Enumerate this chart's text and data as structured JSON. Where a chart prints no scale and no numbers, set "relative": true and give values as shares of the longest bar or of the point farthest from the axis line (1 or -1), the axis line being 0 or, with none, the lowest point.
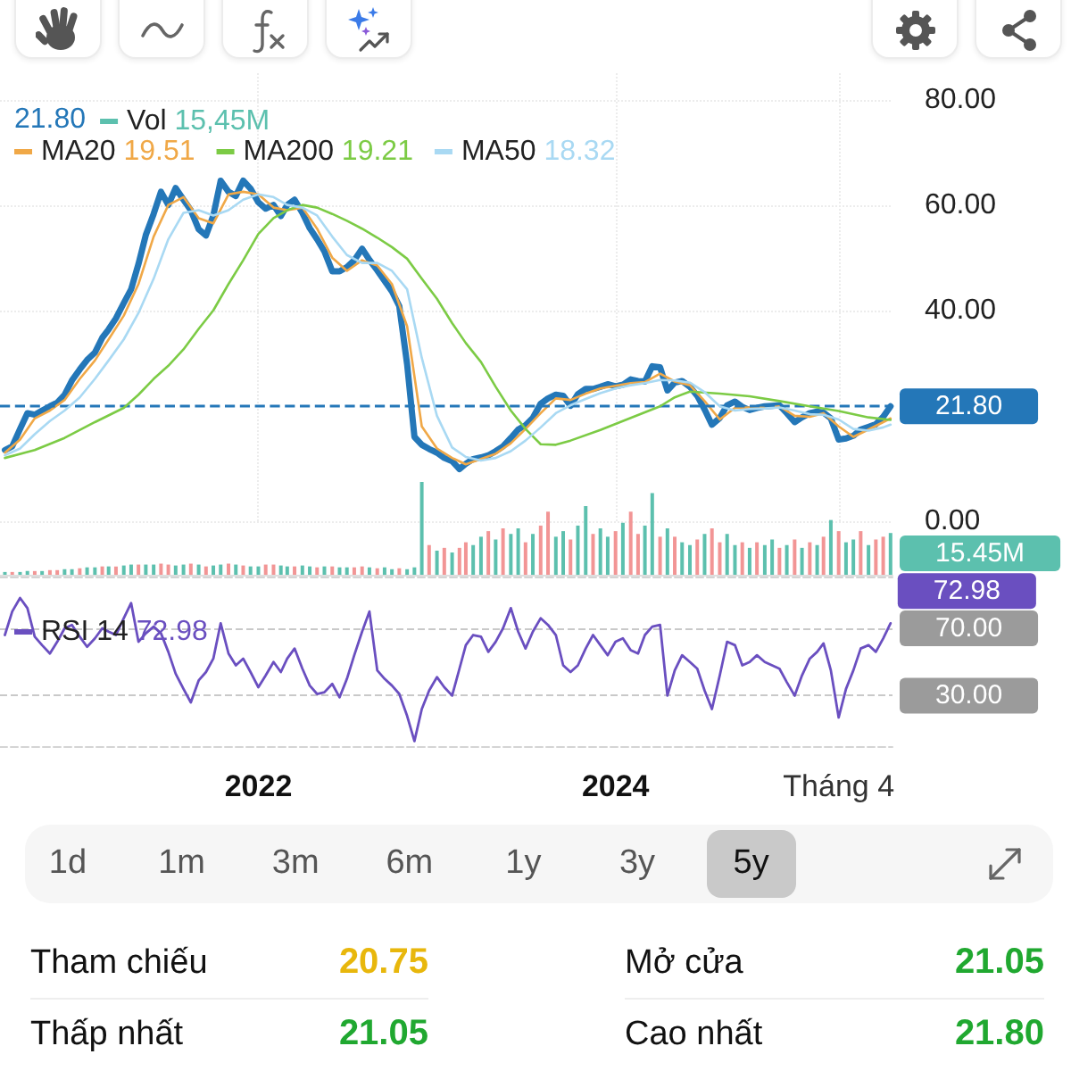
{
  "chart_data": [
    {
      "type": "line",
      "legend": "top left",
      "annotations": [
        "21.80",
        "19.51",
        "19.21",
        "18.32"
      ],
      "xlim": [
        "2020-07-22",
        "2025-07-20"
      ],
      "xticks": [
        {
          "value": "2022-01-01",
          "label": null
        },
        {
          "value": "2024-01-01",
          "label": null
        },
        {
          "value": "2025-04-01",
          "label": null
        }
      ],
      "ylim": [
        0,
        85
      ],
      "yticks": [
        {
          "value": 0,
          "label": "0.00"
        },
        {
          "value": 40,
          "label": "40.00"
        },
        {
          "value": 60,
          "label": "60.00"
        },
        {
          "value": 80,
          "label": "80.00"
        }
      ],
      "tick_labels": "y",
      "grid": true,
      "ref_lines": [
        {
          "axis": "y",
          "value": 21.8,
          "label": "21.80",
          "color": "#2477b8",
          "line_style": "dashed"
        }
      ],
      "series": [
        {
          "color": "#2477b8",
          "x": [
            "2020-08-01",
            "2020-08-16",
            "2020-09-01",
            "2020-09-16",
            "2020-10-01",
            "2020-10-16",
            "2020-11-01",
            "2020-11-16",
            "2020-12-01",
            "2020-12-16",
            "2021-01-01",
            "2021-01-16",
            "2021-02-01",
            "2021-02-16",
            "2021-03-01",
            "2021-03-16",
            "2021-04-01",
            "2021-04-16",
            "2021-05-01",
            "2021-05-16",
            "2021-06-01",
            "2021-06-16",
            "2021-07-01",
            "2021-07-16",
            "2021-08-01",
            "2021-08-16",
            "2021-09-01",
            "2021-09-16",
            "2021-10-01",
            "2021-10-16",
            "2021-11-01",
            "2021-11-16",
            "2021-12-01",
            "2021-12-16",
            "2022-01-01",
            "2022-01-16",
            "2022-02-01",
            "2022-02-16",
            "2022-03-01",
            "2022-03-16",
            "2022-04-01",
            "2022-04-16",
            "2022-05-01",
            "2022-05-16",
            "2022-06-01",
            "2022-06-16",
            "2022-07-01",
            "2022-07-16",
            "2022-08-01",
            "2022-08-16",
            "2022-09-01",
            "2022-09-16",
            "2022-10-01",
            "2022-10-16",
            "2022-11-01",
            "2022-11-16",
            "2022-12-01",
            "2022-12-16",
            "2023-01-01",
            "2023-01-16",
            "2023-02-01",
            "2023-02-16",
            "2023-03-01",
            "2023-03-16",
            "2023-04-01",
            "2023-04-16",
            "2023-05-01",
            "2023-05-16",
            "2023-06-01",
            "2023-06-16",
            "2023-07-01",
            "2023-07-16",
            "2023-08-01",
            "2023-08-16",
            "2023-09-01",
            "2023-09-16",
            "2023-10-01",
            "2023-10-16",
            "2023-11-01",
            "2023-11-16",
            "2023-12-01",
            "2023-12-16",
            "2024-01-01",
            "2024-01-16",
            "2024-02-01",
            "2024-02-16",
            "2024-03-01",
            "2024-03-16",
            "2024-04-01",
            "2024-04-16",
            "2024-05-01",
            "2024-05-16",
            "2024-06-01",
            "2024-06-16",
            "2024-07-01",
            "2024-07-16",
            "2024-08-01",
            "2024-08-16",
            "2024-09-01",
            "2024-09-16",
            "2024-10-01",
            "2024-10-16",
            "2024-11-01",
            "2024-11-16",
            "2024-12-01",
            "2024-12-16",
            "2025-01-01",
            "2025-01-16",
            "2025-02-01",
            "2025-02-16",
            "2025-03-01",
            "2025-03-16",
            "2025-04-01",
            "2025-04-16",
            "2025-05-01",
            "2025-05-16",
            "2025-06-01",
            "2025-06-16",
            "2025-07-01",
            "2025-07-16"
          ],
          "values": [
            13.5,
            14.2,
            17.5,
            20.5,
            20.2,
            21,
            21.8,
            22.5,
            24,
            26.7,
            28.8,
            30.6,
            32,
            34.8,
            36.4,
            38.5,
            41.4,
            44,
            48.8,
            54.3,
            58.3,
            62.5,
            60,
            63.2,
            61,
            59,
            55.4,
            54.2,
            58,
            64.6,
            62.5,
            61.7,
            64.6,
            63.1,
            60.5,
            59.3,
            60,
            57.9,
            60,
            61,
            58.5,
            55.6,
            53.5,
            51.2,
            47.4,
            47.4,
            48.2,
            49.5,
            51.7,
            49.6,
            47.6,
            45.6,
            43.6,
            40.8,
            29.8,
            16,
            14.5,
            13.7,
            13,
            12,
            11.4,
            9.9,
            10.9,
            11.8,
            12.1,
            12.5,
            13.3,
            14.2,
            15.8,
            17.4,
            18.2,
            19.6,
            22.3,
            23.3,
            24,
            23.8,
            21.9,
            24.1,
            25.1,
            25.1,
            25.5,
            26,
            25.6,
            25.9,
            26.9,
            26.6,
            26.5,
            29.4,
            29.2,
            24.8,
            26.3,
            26.6,
            25.5,
            23.8,
            21.2,
            18.3,
            19.6,
            22,
            22.7,
            21.7,
            21.1,
            21.5,
            21.8,
            21.9,
            22,
            20.5,
            18.8,
            19.7,
            20.5,
            20.8,
            20.6,
            19.5,
            15.5,
            15.7,
            16.2,
            17.4,
            17.9,
            18.4,
            19.8,
            21.8
          ]
        },
        {
          "name": "MA20",
          "color": "#f0a847",
          "x": [
            "2020-08-01",
            "2020-09-01",
            "2020-10-01",
            "2020-11-01",
            "2020-12-01",
            "2021-01-01",
            "2021-02-01",
            "2021-03-01",
            "2021-04-01",
            "2021-05-01",
            "2021-06-01",
            "2021-07-01",
            "2021-08-01",
            "2021-09-01",
            "2021-10-01",
            "2021-11-01",
            "2021-12-01",
            "2022-01-01",
            "2022-02-01",
            "2022-03-01",
            "2022-04-01",
            "2022-05-01",
            "2022-06-01",
            "2022-07-01",
            "2022-08-01",
            "2022-09-01",
            "2022-10-01",
            "2022-11-01",
            "2022-12-01",
            "2023-01-01",
            "2023-02-01",
            "2023-03-01",
            "2023-04-01",
            "2023-05-01",
            "2023-06-01",
            "2023-07-01",
            "2023-08-01",
            "2023-09-01",
            "2023-10-01",
            "2023-11-01",
            "2023-12-01",
            "2024-01-01",
            "2024-02-01",
            "2024-03-01",
            "2024-04-01",
            "2024-05-01",
            "2024-06-01",
            "2024-07-01",
            "2024-08-01",
            "2024-09-01",
            "2024-10-01",
            "2024-11-01",
            "2024-12-01",
            "2025-01-01",
            "2025-02-01",
            "2025-03-01",
            "2025-04-01",
            "2025-05-01",
            "2025-06-01",
            "2025-07-01",
            "2025-07-16"
          ],
          "values": [
            13,
            15.5,
            19.5,
            21,
            23,
            27,
            30.5,
            34.5,
            39,
            45,
            54,
            60,
            61.5,
            57.5,
            56.5,
            62,
            62.5,
            62,
            59.5,
            59,
            59.5,
            55.5,
            50,
            47.5,
            49.5,
            48.5,
            45,
            37,
            18,
            13.8,
            12,
            10.8,
            11.8,
            12.8,
            14.8,
            17.5,
            20.5,
            23.3,
            23,
            24.2,
            25.2,
            25.7,
            26.2,
            26.4,
            28,
            26.5,
            25.8,
            22.8,
            19.3,
            21.5,
            21.6,
            21.5,
            21.8,
            20,
            19.8,
            20.5,
            18,
            16,
            17.4,
            18.8,
            19.51
          ]
        },
        {
          "name": "MA200",
          "color": "#7ccb45",
          "x": [
            "2020-08-01",
            "2020-10-01",
            "2020-12-01",
            "2021-02-01",
            "2021-04-01",
            "2021-05-01",
            "2021-06-01",
            "2021-07-01",
            "2021-08-01",
            "2021-09-01",
            "2021-10-01",
            "2021-11-01",
            "2021-12-01",
            "2022-01-01",
            "2022-02-01",
            "2022-03-01",
            "2022-04-01",
            "2022-05-01",
            "2022-06-01",
            "2022-07-01",
            "2022-08-01",
            "2022-09-01",
            "2022-10-01",
            "2022-11-01",
            "2022-12-01",
            "2023-01-01",
            "2023-02-01",
            "2023-03-01",
            "2023-04-01",
            "2023-05-01",
            "2023-06-01",
            "2023-07-01",
            "2023-08-01",
            "2023-09-01",
            "2023-10-01",
            "2023-12-01",
            "2024-02-01",
            "2024-04-01",
            "2024-05-01",
            "2024-06-01",
            "2024-08-01",
            "2024-10-01",
            "2024-12-01",
            "2025-02-01",
            "2025-04-01",
            "2025-06-01",
            "2025-07-16"
          ],
          "values": [
            12,
            13.5,
            15.8,
            18.8,
            21.5,
            24,
            27,
            29.5,
            32.6,
            36.5,
            40,
            45,
            49.5,
            54.5,
            57.5,
            59,
            60,
            59.5,
            58.3,
            57,
            55.5,
            53.8,
            52,
            49.8,
            46,
            42.2,
            37.6,
            33.8,
            30.2,
            25.5,
            21,
            17.5,
            14.6,
            14.5,
            15.3,
            17.3,
            19.6,
            21.8,
            23.5,
            24.6,
            24.2,
            23.7,
            22.8,
            21.8,
            20.9,
            19.7,
            19.21
          ]
        },
        {
          "name": "MA50",
          "color": "#a9d9f3",
          "x": [
            "2020-08-01",
            "2020-09-01",
            "2020-10-01",
            "2020-11-01",
            "2020-12-01",
            "2021-01-01",
            "2021-02-01",
            "2021-03-01",
            "2021-04-01",
            "2021-05-01",
            "2021-06-01",
            "2021-07-01",
            "2021-08-01",
            "2021-09-01",
            "2021-10-01",
            "2021-11-01",
            "2021-12-01",
            "2022-01-01",
            "2022-02-01",
            "2022-03-01",
            "2022-04-01",
            "2022-05-01",
            "2022-06-01",
            "2022-07-01",
            "2022-08-01",
            "2022-09-01",
            "2022-10-01",
            "2022-11-01",
            "2022-12-01",
            "2023-01-01",
            "2023-02-01",
            "2023-03-01",
            "2023-04-01",
            "2023-05-01",
            "2023-06-01",
            "2023-07-01",
            "2023-08-01",
            "2023-09-01",
            "2023-10-01",
            "2023-11-01",
            "2023-12-01",
            "2024-01-01",
            "2024-02-01",
            "2024-03-01",
            "2024-04-01",
            "2024-05-01",
            "2024-06-01",
            "2024-07-01",
            "2024-08-01",
            "2024-09-01",
            "2024-10-01",
            "2024-11-01",
            "2024-12-01",
            "2025-01-01",
            "2025-02-01",
            "2025-03-01",
            "2025-04-01",
            "2025-05-01",
            "2025-06-01",
            "2025-07-01",
            "2025-07-16"
          ],
          "values": [
            12.5,
            13.8,
            16.5,
            19,
            21,
            23.5,
            27,
            30.5,
            34.5,
            39.5,
            46,
            53.5,
            58.5,
            59,
            58,
            59,
            61,
            62,
            61.5,
            60,
            59.5,
            58,
            54,
            50.5,
            49,
            49,
            47.5,
            44,
            31,
            20,
            14,
            12.2,
            11.5,
            12,
            13.3,
            15.3,
            17.8,
            20.5,
            22,
            23.2,
            24.3,
            25.2,
            25.8,
            26.2,
            26.8,
            26.7,
            26.3,
            24.5,
            21.8,
            21,
            21.3,
            21.4,
            21.6,
            21,
            20.3,
            20.2,
            19.3,
            17.5,
            17.2,
            17.8,
            18.32
          ]
        }
      ]
    },
    {
      "type": "bar",
      "legend": "top left",
      "relative": true,
      "tick_labels": false,
      "annotations": [
        "15,45M",
        "15.45M"
      ],
      "xlim": [
        "2020-07-22",
        "2025-07-20"
      ],
      "x": [
        "2020-08-01",
        "2020-08-16",
        "2020-09-01",
        "2020-09-16",
        "2020-10-01",
        "2020-10-16",
        "2020-11-01",
        "2020-11-16",
        "2020-12-01",
        "2020-12-16",
        "2021-01-01",
        "2021-01-16",
        "2021-02-01",
        "2021-02-16",
        "2021-03-01",
        "2021-03-16",
        "2021-04-01",
        "2021-04-16",
        "2021-05-01",
        "2021-05-16",
        "2021-06-01",
        "2021-06-16",
        "2021-07-01",
        "2021-07-16",
        "2021-08-01",
        "2021-08-16",
        "2021-09-01",
        "2021-09-16",
        "2021-10-01",
        "2021-10-16",
        "2021-11-01",
        "2021-11-16",
        "2021-12-01",
        "2021-12-16",
        "2022-01-01",
        "2022-01-16",
        "2022-02-01",
        "2022-02-16",
        "2022-03-01",
        "2022-03-16",
        "2022-04-01",
        "2022-04-16",
        "2022-05-01",
        "2022-05-16",
        "2022-06-01",
        "2022-06-16",
        "2022-07-01",
        "2022-07-16",
        "2022-08-01",
        "2022-08-16",
        "2022-09-01",
        "2022-09-16",
        "2022-10-01",
        "2022-10-16",
        "2022-11-01",
        "2022-11-16",
        "2022-12-01",
        "2022-12-16",
        "2023-01-01",
        "2023-01-16",
        "2023-02-01",
        "2023-02-16",
        "2023-03-01",
        "2023-03-16",
        "2023-04-01",
        "2023-04-16",
        "2023-05-01",
        "2023-05-16",
        "2023-06-01",
        "2023-06-16",
        "2023-07-01",
        "2023-07-16",
        "2023-08-01",
        "2023-08-16",
        "2023-09-01",
        "2023-09-16",
        "2023-10-01",
        "2023-10-16",
        "2023-11-01",
        "2023-11-16",
        "2023-12-01",
        "2023-12-16",
        "2024-01-01",
        "2024-01-16",
        "2024-02-01",
        "2024-02-16",
        "2024-03-01",
        "2024-03-16",
        "2024-04-01",
        "2024-04-16",
        "2024-05-01",
        "2024-05-16",
        "2024-06-01",
        "2024-06-16",
        "2024-07-01",
        "2024-07-16",
        "2024-08-01",
        "2024-08-16",
        "2024-09-01",
        "2024-09-16",
        "2024-10-01",
        "2024-10-16",
        "2024-11-01",
        "2024-11-16",
        "2024-12-01",
        "2024-12-16",
        "2025-01-01",
        "2025-01-16",
        "2025-02-01",
        "2025-02-16",
        "2025-03-01",
        "2025-03-16",
        "2025-04-01",
        "2025-04-16",
        "2025-05-01",
        "2025-05-16",
        "2025-06-01",
        "2025-06-16",
        "2025-07-01",
        "2025-07-16"
      ],
      "series": [
        {
          "name": "Vol",
          "color": "#5cc0ae",
          "values": [
            0.03,
            0.03,
            0.03,
            0.04,
            0.04,
            0.04,
            0.05,
            0.05,
            0.06,
            0.06,
            0.07,
            0.08,
            0.08,
            0.09,
            0.09,
            0.09,
            0.1,
            0.11,
            0.11,
            0.11,
            0.11,
            0.12,
            0.11,
            0.1,
            0.11,
            0.12,
            0.11,
            0.09,
            0.1,
            0.11,
            0.12,
            0.11,
            0.1,
            0.09,
            0.09,
            0.11,
            0.11,
            0.1,
            0.09,
            0.09,
            0.1,
            0.09,
            0.08,
            0.09,
            0.09,
            0.08,
            0.08,
            0.08,
            0.09,
            0.08,
            0.07,
            0.08,
            0.06,
            0.07,
            0.06,
            0.08,
            1,
            0.32,
            0.26,
            0.29,
            0.24,
            0.29,
            0.35,
            0.32,
            0.41,
            0.47,
            0.38,
            0.5,
            0.44,
            0.5,
            0.35,
            0.44,
            0.53,
            0.68,
            0.41,
            0.47,
            0.38,
            0.53,
            0.74,
            0.44,
            0.5,
            0.41,
            0.47,
            0.56,
            0.68,
            0.44,
            0.53,
            0.88,
            0.41,
            0.5,
            0.41,
            0.35,
            0.32,
            0.38,
            0.44,
            0.5,
            0.35,
            0.44,
            0.32,
            0.35,
            0.29,
            0.35,
            0.32,
            0.38,
            0.29,
            0.32,
            0.38,
            0.29,
            0.35,
            0.32,
            0.41,
            0.59,
            0.47,
            0.35,
            0.38,
            0.47,
            0.32,
            0.38,
            0.41,
            0.45
          ],
          "colors": [
            "#5cc0ae",
            "#f29595",
            "#5cc0ae",
            "#5cc0ae",
            "#f29595",
            "#5cc0ae",
            "#f29595",
            "#f29595",
            "#5cc0ae",
            "#5cc0ae",
            "#f29595",
            "#5cc0ae",
            "#5cc0ae",
            "#f29595",
            "#5cc0ae",
            "#f29595",
            "#5cc0ae",
            "#5cc0ae",
            "#f29595",
            "#5cc0ae",
            "#5cc0ae",
            "#f29595",
            "#f29595",
            "#5cc0ae",
            "#5cc0ae",
            "#f29595",
            "#5cc0ae",
            "#f29595",
            "#5cc0ae",
            "#5cc0ae",
            "#f29595",
            "#5cc0ae",
            "#f29595",
            "#5cc0ae",
            "#5cc0ae",
            "#f29595",
            "#f29595",
            "#5cc0ae",
            "#5cc0ae",
            "#f29595",
            "#5cc0ae",
            "#5cc0ae",
            "#f29595",
            "#5cc0ae",
            "#f29595",
            "#5cc0ae",
            "#5cc0ae",
            "#f29595",
            "#f29595",
            "#5cc0ae",
            "#f29595",
            "#5cc0ae",
            "#5cc0ae",
            "#f29595",
            "#5cc0ae",
            "#5cc0ae",
            "#5cc0ae",
            "#f29595",
            "#5cc0ae",
            "#f29595",
            "#5cc0ae",
            "#f29595",
            "#f29595",
            "#5cc0ae",
            "#5cc0ae",
            "#f29595",
            "#5cc0ae",
            "#f29595",
            "#5cc0ae",
            "#5cc0ae",
            "#f29595",
            "#5cc0ae",
            "#f29595",
            "#f29595",
            "#5cc0ae",
            "#5cc0ae",
            "#f29595",
            "#5cc0ae",
            "#5cc0ae",
            "#f29595",
            "#5cc0ae",
            "#5cc0ae",
            "#f29595",
            "#5cc0ae",
            "#f29595",
            "#f29595",
            "#5cc0ae",
            "#5cc0ae",
            "#f29595",
            "#5cc0ae",
            "#f29595",
            "#5cc0ae",
            "#5cc0ae",
            "#f29595",
            "#5cc0ae",
            "#f29595",
            "#f29595",
            "#5cc0ae",
            "#5cc0ae",
            "#f29595",
            "#5cc0ae",
            "#f29595",
            "#5cc0ae",
            "#5cc0ae",
            "#f29595",
            "#5cc0ae",
            "#f29595",
            "#5cc0ae",
            "#f29595",
            "#5cc0ae",
            "#f29595",
            "#5cc0ae",
            "#f29595",
            "#5cc0ae",
            "#5cc0ae",
            "#f29595",
            "#5cc0ae",
            "#f29595",
            "#f29595",
            "#5cc0ae"
          ]
        }
      ]
    },
    {
      "type": "line",
      "legend": "top left",
      "annotations": [
        "72.98"
      ],
      "xlim": [
        "2020-07-22",
        "2025-07-20"
      ],
      "xticks": [
        {
          "value": "2022-01-01",
          "label": "2022"
        },
        {
          "value": "2024-01-01",
          "label": "2024"
        },
        {
          "value": "2025-04-01",
          "label": "Tháng 4"
        }
      ],
      "ylim": [
        0,
        100
      ],
      "yticks": [
        {
          "value": 30,
          "label": "30.00"
        },
        {
          "value": 70,
          "label": "70.00"
        }
      ],
      "grid": "y",
      "x": [
        "2020-08-01",
        "2020-08-16",
        "2020-09-01",
        "2020-09-16",
        "2020-10-01",
        "2020-10-16",
        "2020-11-01",
        "2020-11-16",
        "2020-12-01",
        "2020-12-16",
        "2021-01-01",
        "2021-01-16",
        "2021-02-01",
        "2021-02-16",
        "2021-03-01",
        "2021-03-16",
        "2021-04-01",
        "2021-04-16",
        "2021-05-01",
        "2021-05-16",
        "2021-06-01",
        "2021-06-16",
        "2021-07-01",
        "2021-07-16",
        "2021-08-01",
        "2021-08-16",
        "2021-09-01",
        "2021-09-16",
        "2021-10-01",
        "2021-10-16",
        "2021-11-01",
        "2021-11-16",
        "2021-12-01",
        "2021-12-16",
        "2022-01-01",
        "2022-01-16",
        "2022-02-01",
        "2022-02-16",
        "2022-03-01",
        "2022-03-16",
        "2022-04-01",
        "2022-04-16",
        "2022-05-01",
        "2022-05-16",
        "2022-06-01",
        "2022-06-16",
        "2022-07-01",
        "2022-07-16",
        "2022-08-01",
        "2022-08-16",
        "2022-09-01",
        "2022-09-16",
        "2022-10-01",
        "2022-10-16",
        "2022-11-01",
        "2022-11-16",
        "2022-12-01",
        "2022-12-16",
        "2023-01-01",
        "2023-01-16",
        "2023-02-01",
        "2023-02-16",
        "2023-03-01",
        "2023-03-16",
        "2023-04-01",
        "2023-04-16",
        "2023-05-01",
        "2023-05-16",
        "2023-06-01",
        "2023-06-16",
        "2023-07-01",
        "2023-07-16",
        "2023-08-01",
        "2023-08-16",
        "2023-09-01",
        "2023-09-16",
        "2023-10-01",
        "2023-10-16",
        "2023-11-01",
        "2023-11-16",
        "2023-12-01",
        "2023-12-16",
        "2024-01-01",
        "2024-01-16",
        "2024-02-01",
        "2024-02-16",
        "2024-03-01",
        "2024-03-16",
        "2024-04-01",
        "2024-04-16",
        "2024-05-01",
        "2024-05-16",
        "2024-06-01",
        "2024-06-16",
        "2024-07-01",
        "2024-07-16",
        "2024-08-01",
        "2024-08-16",
        "2024-09-01",
        "2024-09-16",
        "2024-10-01",
        "2024-10-16",
        "2024-11-01",
        "2024-11-16",
        "2024-12-01",
        "2024-12-16",
        "2025-01-01",
        "2025-01-16",
        "2025-02-01",
        "2025-02-16",
        "2025-03-01",
        "2025-03-16",
        "2025-04-01",
        "2025-04-16",
        "2025-05-01",
        "2025-05-16",
        "2025-06-01",
        "2025-06-16",
        "2025-07-01",
        "2025-07-16"
      ],
      "series": [
        {
          "name": "RSI 14",
          "color": "#6a4fc0",
          "values": [
            66,
            80,
            88,
            82,
            65,
            60,
            55,
            62,
            70,
            72,
            65,
            59,
            64,
            70,
            68,
            66,
            76,
            85,
            62,
            67,
            71,
            67,
            56,
            43,
            34,
            26,
            39,
            44,
            52,
            73,
            55,
            48,
            52,
            44,
            35,
            42,
            50,
            44,
            52,
            58,
            46,
            36,
            31,
            32,
            37,
            29,
            40,
            54,
            68,
            80,
            45,
            40,
            36,
            31,
            18,
            3,
            22,
            33,
            41,
            35,
            30,
            46,
            60,
            66,
            65,
            56,
            62,
            70,
            82,
            68,
            58,
            68,
            76,
            72,
            66,
            48,
            44,
            48,
            58,
            66,
            60,
            54,
            62,
            64,
            57,
            55,
            66,
            71,
            72,
            30,
            45,
            54,
            50,
            46,
            33,
            22,
            42,
            62,
            60,
            48,
            50,
            54,
            50,
            48,
            46,
            38,
            30,
            42,
            52,
            56,
            61,
            45,
            17,
            34,
            45,
            58,
            60,
            56,
            64,
            72.98
          ],
          "value_labels": [
            null,
            null,
            null,
            null,
            null,
            null,
            null,
            null,
            null,
            null,
            null,
            null,
            null,
            null,
            null,
            null,
            null,
            null,
            null,
            null,
            null,
            null,
            null,
            null,
            null,
            null,
            null,
            null,
            null,
            null,
            null,
            null,
            null,
            null,
            null,
            null,
            null,
            null,
            null,
            null,
            null,
            null,
            null,
            null,
            null,
            null,
            null,
            null,
            null,
            null,
            null,
            null,
            null,
            null,
            null,
            null,
            null,
            null,
            null,
            null,
            null,
            null,
            null,
            null,
            null,
            null,
            null,
            null,
            null,
            null,
            null,
            null,
            null,
            null,
            null,
            null,
            null,
            null,
            null,
            null,
            null,
            null,
            null,
            null,
            null,
            null,
            null,
            null,
            null,
            null,
            null,
            null,
            null,
            null,
            null,
            null,
            null,
            null,
            null,
            null,
            null,
            null,
            null,
            null,
            null,
            null,
            null,
            null,
            null,
            null,
            null,
            null,
            null,
            null,
            null,
            null,
            null,
            null,
            null,
            "72.98"
          ]
        }
      ]
    },
    {
      "type": "other",
      "categories": [
        "1d",
        "1m",
        "3m",
        "6m",
        "1y",
        "3y",
        "5y"
      ]
    },
    {
      "type": "other",
      "categories": [
        "Tham chiếu",
        "Mở cửa",
        "Thấp nhất",
        "Cao nhất"
      ],
      "value_labels": [
        "20.75",
        "21.05",
        "21.05",
        "21.80"
      ],
      "colors": [
        "#e8b70c",
        "#20a830",
        "#20a830",
        "#20a830"
      ]
    }
  ]
}
